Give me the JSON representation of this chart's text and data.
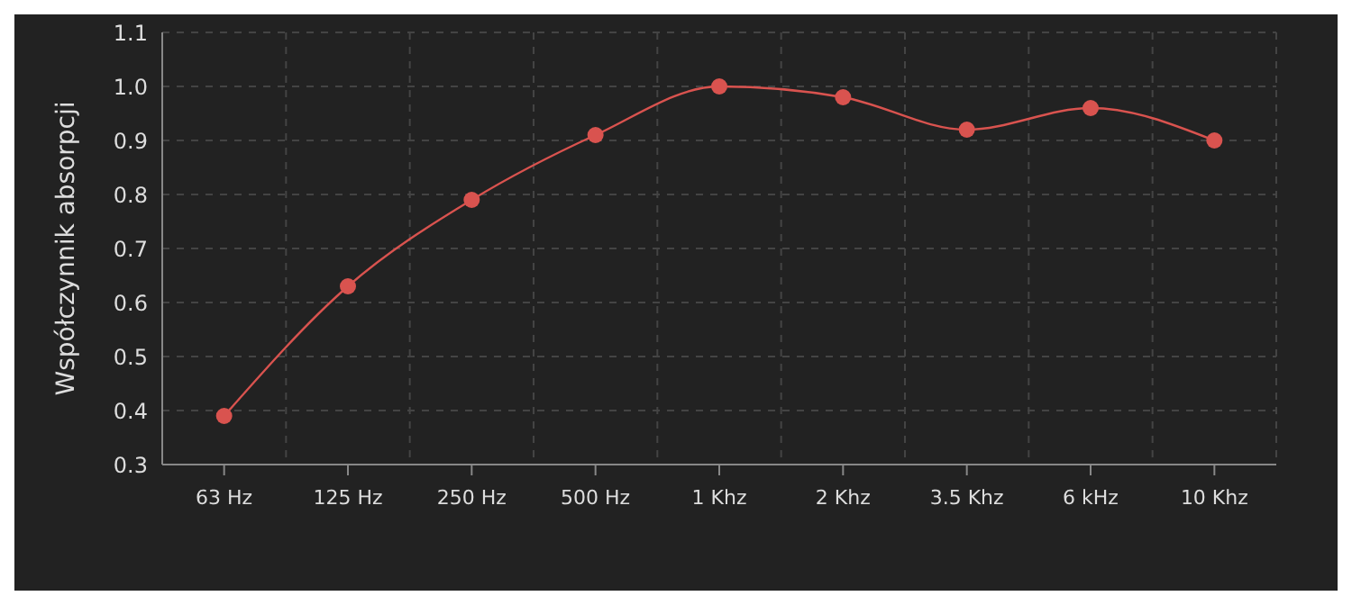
{
  "chart_data": {
    "type": "line",
    "ylabel": "Współczynnik absorpcji",
    "categories": [
      "63 Hz",
      "125 Hz",
      "250 Hz",
      "500 Hz",
      "1 Khz",
      "2 Khz",
      "3.5 Khz",
      "6 kHz",
      "10 Khz"
    ],
    "series": [
      {
        "color": "#d9534f",
        "values": [
          0.39,
          0.63,
          0.79,
          0.91,
          1.0,
          0.98,
          0.92,
          0.96,
          0.9
        ]
      }
    ],
    "ylim": [
      0.3,
      1.1
    ],
    "yticks": [
      {
        "value": 0.3,
        "label": "0.3"
      },
      {
        "value": 0.4,
        "label": "0.4"
      },
      {
        "value": 0.5,
        "label": "0.5"
      },
      {
        "value": 0.6,
        "label": "0.6"
      },
      {
        "value": 0.7,
        "label": "0.7"
      },
      {
        "value": 0.8,
        "label": "0.8"
      },
      {
        "value": 0.9,
        "label": "0.9"
      },
      {
        "value": 1.0,
        "label": "1.0"
      },
      {
        "value": 1.1,
        "label": "1.1"
      }
    ],
    "grid": true,
    "marker": "circle",
    "line_style": "solid",
    "legend": false
  }
}
